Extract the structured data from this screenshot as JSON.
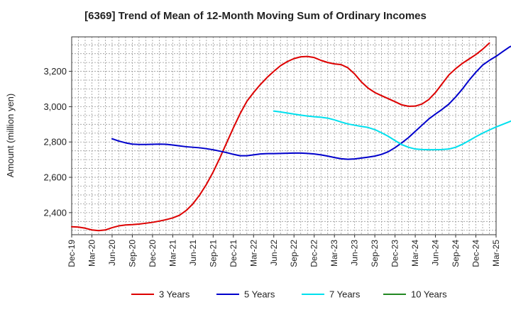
{
  "chart_data": {
    "type": "line",
    "title": "[6369]  Trend of Mean of 12-Month Moving Sum of Ordinary Incomes",
    "xlabel": "",
    "ylabel": "Amount (million yen)",
    "ylim": [
      2275,
      3395
    ],
    "yticks": [
      2400,
      2600,
      2800,
      3000,
      3200
    ],
    "ytick_labels": [
      "2,400",
      "2,600",
      "2,800",
      "3,000",
      "3,200"
    ],
    "xticks": [
      "Dec-19",
      "Mar-20",
      "Jun-20",
      "Sep-20",
      "Dec-20",
      "Mar-21",
      "Jun-21",
      "Sep-21",
      "Dec-21",
      "Mar-22",
      "Jun-22",
      "Sep-22",
      "Dec-22",
      "Mar-23",
      "Jun-23",
      "Sep-23",
      "Dec-23",
      "Mar-24",
      "Jun-24",
      "Sep-24",
      "Dec-24",
      "Mar-25"
    ],
    "grid": true,
    "legend_position": "bottom",
    "series": [
      {
        "name": "3 Years",
        "color": "#dd0000",
        "start_index": 0,
        "values": [
          2320,
          2318,
          2312,
          2302,
          2298,
          2302,
          2315,
          2325,
          2330,
          2332,
          2335,
          2340,
          2345,
          2352,
          2360,
          2370,
          2385,
          2412,
          2450,
          2500,
          2560,
          2630,
          2710,
          2795,
          2880,
          2960,
          3030,
          3080,
          3125,
          3165,
          3200,
          3232,
          3255,
          3272,
          3282,
          3284,
          3278,
          3262,
          3250,
          3242,
          3238,
          3220,
          3185,
          3140,
          3105,
          3080,
          3062,
          3045,
          3028,
          3010,
          3002,
          3003,
          3015,
          3040,
          3080,
          3130,
          3180,
          3215,
          3245,
          3270,
          3295,
          3325,
          3360
        ]
      },
      {
        "name": "5 Years",
        "color": "#0000cc",
        "start_index": 6,
        "values": [
          2818,
          2805,
          2795,
          2788,
          2786,
          2786,
          2787,
          2788,
          2787,
          2783,
          2778,
          2773,
          2770,
          2767,
          2762,
          2756,
          2748,
          2740,
          2730,
          2722,
          2722,
          2727,
          2732,
          2734,
          2734,
          2735,
          2736,
          2737,
          2737,
          2735,
          2732,
          2727,
          2720,
          2712,
          2705,
          2702,
          2704,
          2709,
          2714,
          2720,
          2730,
          2745,
          2768,
          2795,
          2825,
          2860,
          2895,
          2930,
          2958,
          2985,
          3015,
          3055,
          3100,
          3150,
          3195,
          3235,
          3262,
          3285,
          3312,
          3338,
          3355
        ]
      },
      {
        "name": "7 Years",
        "color": "#00e0ee",
        "start_index": 30,
        "values": [
          2975,
          2970,
          2964,
          2958,
          2952,
          2947,
          2943,
          2940,
          2935,
          2925,
          2913,
          2902,
          2895,
          2888,
          2882,
          2870,
          2852,
          2832,
          2808,
          2785,
          2770,
          2760,
          2757,
          2756,
          2756,
          2757,
          2760,
          2770,
          2787,
          2808,
          2830,
          2850,
          2868,
          2885,
          2900,
          2915,
          2932
        ]
      },
      {
        "name": "10 Years",
        "color": "#228822",
        "start_index": 0,
        "values": []
      }
    ]
  }
}
